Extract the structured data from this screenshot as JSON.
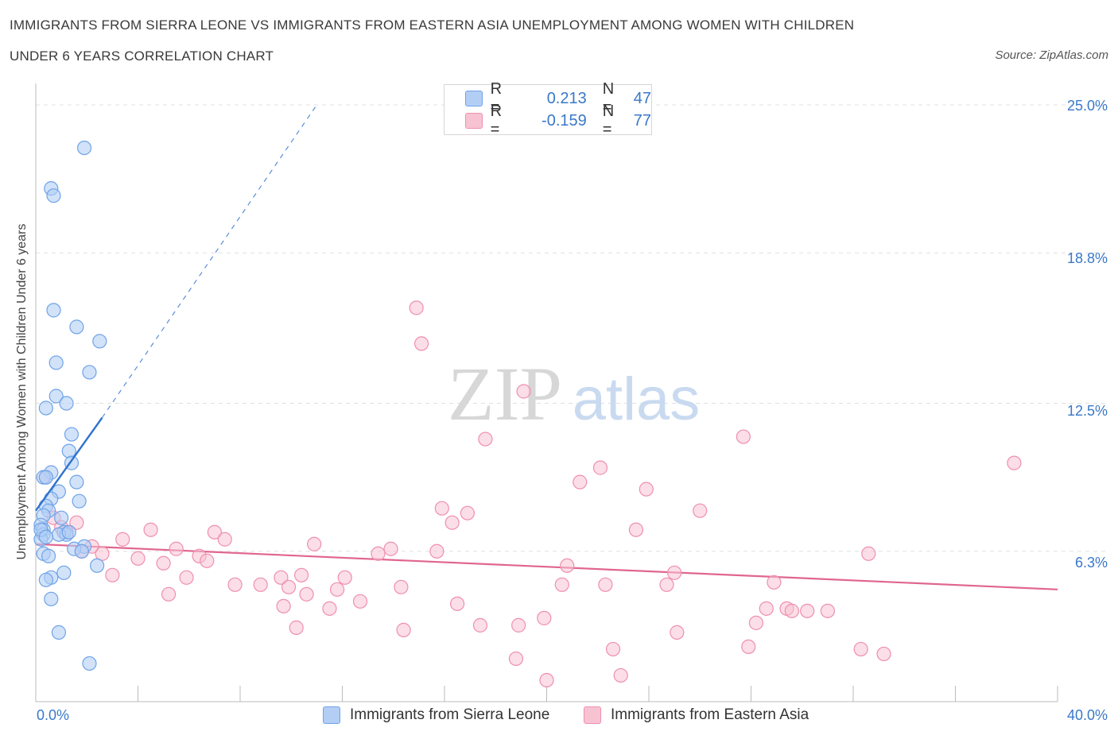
{
  "header": {
    "title_line1": "IMMIGRANTS FROM SIERRA LEONE VS IMMIGRANTS FROM EASTERN ASIA UNEMPLOYMENT AMONG WOMEN WITH CHILDREN",
    "title_line2": "UNDER 6 YEARS CORRELATION CHART",
    "source": "Source: ZipAtlas.com"
  },
  "watermark": {
    "zip": "ZIP",
    "atlas": "atlas"
  },
  "legend_top": {
    "rows": [
      {
        "r_label": "R =",
        "r_value": "0.213",
        "n_label": "N =",
        "n_value": "47",
        "color": "#b3cef5"
      },
      {
        "r_label": "R =",
        "r_value": "-0.159",
        "n_label": "N =",
        "n_value": "77",
        "color": "#f7c3d3"
      }
    ]
  },
  "legend_bottom": [
    {
      "label": "Immigrants from Sierra Leone",
      "color": "#b3cef5"
    },
    {
      "label": "Immigrants from Eastern Asia",
      "color": "#f7c3d3"
    }
  ],
  "chart_data": {
    "type": "scatter",
    "ylabel": "Unemployment Among Women with Children Under 6 years",
    "xlim": [
      0,
      40
    ],
    "ylim": [
      0,
      25.5
    ],
    "x_tick_labels": [
      "0.0%",
      "40.0%"
    ],
    "y_ticks": [
      {
        "value": 25.0,
        "label": "25.0%"
      },
      {
        "value": 18.8,
        "label": "18.8%"
      },
      {
        "value": 12.5,
        "label": "12.5%"
      },
      {
        "value": 6.3,
        "label": "6.3%"
      }
    ],
    "grid": "horizontal dashed",
    "colors": {
      "sierra_leone": "#6fa3e8",
      "eastern_asia": "#ef8fae",
      "sl_line": "#2f72cf",
      "ea_line": "#e0668f"
    },
    "series": [
      {
        "name": "Immigrants from Sierra Leone",
        "points": [
          [
            1.9,
            23.2
          ],
          [
            0.6,
            21.5
          ],
          [
            0.7,
            21.2
          ],
          [
            0.7,
            16.4
          ],
          [
            1.6,
            15.7
          ],
          [
            2.5,
            15.1
          ],
          [
            0.8,
            14.2
          ],
          [
            2.1,
            13.8
          ],
          [
            0.8,
            12.8
          ],
          [
            1.2,
            12.5
          ],
          [
            0.4,
            12.3
          ],
          [
            1.4,
            11.2
          ],
          [
            1.3,
            10.5
          ],
          [
            1.4,
            10.0
          ],
          [
            0.6,
            9.6
          ],
          [
            0.3,
            9.4
          ],
          [
            1.6,
            9.2
          ],
          [
            0.9,
            8.8
          ],
          [
            0.6,
            8.5
          ],
          [
            1.7,
            8.4
          ],
          [
            0.4,
            8.2
          ],
          [
            0.5,
            8.0
          ],
          [
            0.3,
            7.8
          ],
          [
            1.0,
            7.7
          ],
          [
            0.2,
            7.4
          ],
          [
            0.3,
            7.2
          ],
          [
            1.1,
            7.1
          ],
          [
            1.2,
            7.0
          ],
          [
            0.9,
            7.0
          ],
          [
            0.3,
            7.0
          ],
          [
            0.2,
            6.8
          ],
          [
            1.9,
            6.5
          ],
          [
            1.5,
            6.4
          ],
          [
            0.3,
            6.2
          ],
          [
            0.5,
            6.1
          ],
          [
            1.8,
            6.3
          ],
          [
            2.4,
            5.7
          ],
          [
            1.1,
            5.4
          ],
          [
            0.6,
            5.2
          ],
          [
            0.4,
            5.1
          ],
          [
            0.6,
            4.3
          ],
          [
            0.9,
            2.9
          ],
          [
            2.1,
            1.6
          ],
          [
            0.4,
            9.4
          ],
          [
            1.3,
            7.1
          ],
          [
            0.2,
            7.2
          ],
          [
            0.4,
            6.9
          ]
        ],
        "trend": {
          "x0": 0.0,
          "y0": 8.0,
          "x1": 2.6,
          "y1": 11.9,
          "extended_to": [
            11.0,
            25.0
          ]
        }
      },
      {
        "name": "Immigrants from Eastern Asia",
        "points": [
          [
            14.9,
            16.5
          ],
          [
            15.1,
            15.0
          ],
          [
            19.1,
            13.0
          ],
          [
            17.6,
            11.0
          ],
          [
            27.7,
            11.1
          ],
          [
            38.3,
            10.0
          ],
          [
            22.1,
            9.8
          ],
          [
            21.3,
            9.2
          ],
          [
            23.9,
            8.9
          ],
          [
            0.4,
            9.4
          ],
          [
            15.9,
            8.1
          ],
          [
            16.9,
            7.9
          ],
          [
            26.0,
            8.0
          ],
          [
            0.7,
            7.7
          ],
          [
            1.6,
            7.5
          ],
          [
            16.3,
            7.5
          ],
          [
            4.5,
            7.2
          ],
          [
            7.0,
            7.1
          ],
          [
            23.5,
            7.2
          ],
          [
            1.2,
            7.1
          ],
          [
            1.0,
            7.3
          ],
          [
            7.4,
            6.8
          ],
          [
            3.4,
            6.8
          ],
          [
            10.9,
            6.6
          ],
          [
            2.2,
            6.5
          ],
          [
            5.5,
            6.4
          ],
          [
            13.9,
            6.4
          ],
          [
            32.6,
            6.2
          ],
          [
            2.6,
            6.2
          ],
          [
            4.0,
            6.0
          ],
          [
            6.4,
            6.1
          ],
          [
            6.7,
            5.9
          ],
          [
            15.7,
            6.3
          ],
          [
            13.4,
            6.2
          ],
          [
            5.0,
            5.8
          ],
          [
            20.8,
            5.7
          ],
          [
            25.0,
            5.4
          ],
          [
            3.0,
            5.3
          ],
          [
            5.9,
            5.2
          ],
          [
            9.6,
            5.2
          ],
          [
            10.4,
            5.3
          ],
          [
            12.1,
            5.2
          ],
          [
            8.8,
            4.9
          ],
          [
            9.9,
            4.8
          ],
          [
            28.9,
            5.0
          ],
          [
            7.8,
            4.9
          ],
          [
            20.6,
            4.9
          ],
          [
            22.3,
            4.9
          ],
          [
            24.7,
            4.9
          ],
          [
            11.8,
            4.7
          ],
          [
            14.3,
            4.8
          ],
          [
            5.2,
            4.5
          ],
          [
            10.6,
            4.5
          ],
          [
            12.7,
            4.2
          ],
          [
            16.5,
            4.1
          ],
          [
            9.7,
            4.0
          ],
          [
            11.5,
            3.9
          ],
          [
            28.6,
            3.9
          ],
          [
            29.4,
            3.9
          ],
          [
            29.6,
            3.8
          ],
          [
            30.2,
            3.8
          ],
          [
            31.0,
            3.8
          ],
          [
            19.9,
            3.5
          ],
          [
            18.9,
            3.2
          ],
          [
            17.4,
            3.2
          ],
          [
            28.2,
            3.3
          ],
          [
            10.2,
            3.1
          ],
          [
            14.4,
            3.0
          ],
          [
            25.1,
            2.9
          ],
          [
            27.9,
            2.3
          ],
          [
            22.6,
            2.2
          ],
          [
            32.3,
            2.2
          ],
          [
            33.2,
            2.0
          ],
          [
            18.8,
            1.8
          ],
          [
            22.9,
            1.1
          ],
          [
            20.0,
            0.9
          ],
          [
            1.8,
            6.3
          ]
        ],
        "trend": {
          "x0": 0.0,
          "y0": 6.6,
          "x1": 40.0,
          "y1": 4.7
        }
      }
    ]
  }
}
